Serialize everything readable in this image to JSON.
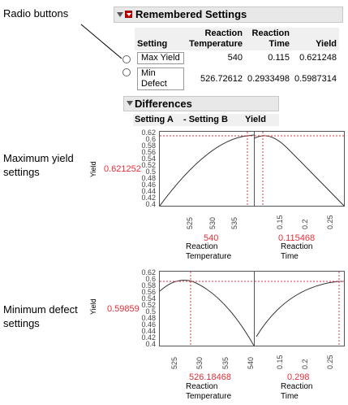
{
  "callouts": {
    "radio": "Radio buttons",
    "max_yield": "Maximum yield\nsettings",
    "min_defect": "Minimum defect\nsettings"
  },
  "remembered": {
    "title": "Remembered Settings",
    "columns": [
      "Setting",
      "Reaction\nTemperature",
      "Reaction\nTime",
      "Yield"
    ],
    "rows": [
      {
        "setting": "Max Yield",
        "temp": "540",
        "time": "0.115",
        "yield": "0.621248"
      },
      {
        "setting": "Min Defect",
        "temp": "526.72612",
        "time": "0.2933498",
        "yield": "0.5987314"
      }
    ]
  },
  "differences": {
    "title": "Differences",
    "columns": [
      "Setting A",
      "- Setting B",
      "Yield"
    ]
  },
  "profilers": [
    {
      "y_name": "Yield",
      "y_current": "0.621252",
      "y_ticks": [
        "0.62",
        "0.6",
        "0.58",
        "0.56",
        "0.54",
        "0.52",
        "0.5",
        "0.48",
        "0.46",
        "0.44",
        "0.42",
        "0.4"
      ],
      "x1_ticks": [
        "525",
        "530",
        "535"
      ],
      "x2_ticks": [
        "0.15",
        "0.2",
        "0.25"
      ],
      "x1_current": "540",
      "x2_current": "0.115468",
      "x1_title": "Reaction\nTemperature",
      "x2_title": "Reaction\nTime"
    },
    {
      "y_name": "Yield",
      "y_current": "0.59859",
      "y_ticks": [
        "0.62",
        "0.6",
        "0.58",
        "0.56",
        "0.54",
        "0.52",
        "0.5",
        "0.48",
        "0.46",
        "0.44",
        "0.42",
        "0.4"
      ],
      "x1_ticks": [
        "525",
        "530",
        "535",
        "540"
      ],
      "x2_ticks": [
        "0.15",
        "0.2",
        "0.25"
      ],
      "x1_current": "526.18468",
      "x2_current": "0.298",
      "x1_title": "Reaction\nTemperature",
      "x2_title": "Reaction\nTime"
    }
  ],
  "colors": {
    "accent_red": "#e0303a",
    "header_bg": "#e8e8e8"
  }
}
